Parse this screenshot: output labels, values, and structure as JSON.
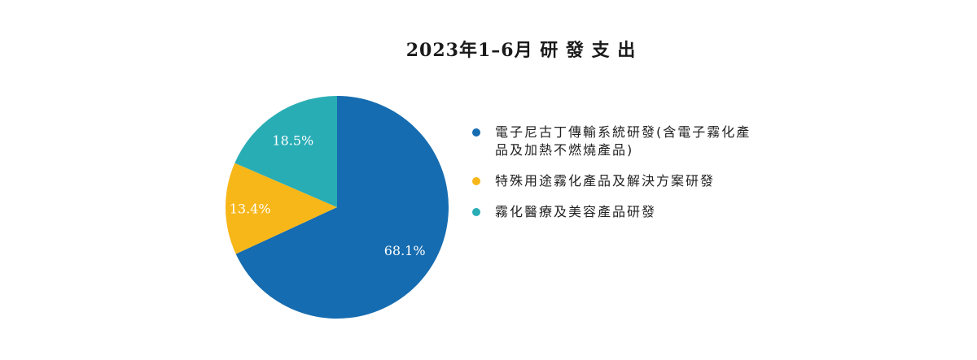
{
  "chart_data": {
    "type": "pie",
    "title": "2023年1–6月 研 發 支 出",
    "categories": [
      "電子尼古丁傳輸系統研發(含電子霧化產品及加熱不燃燒產品)",
      "特殊用途霧化產品及解決方案研發",
      "霧化醫療及美容產品研發"
    ],
    "values": [
      68.1,
      13.4,
      18.5
    ],
    "labels": [
      "68.1%",
      "13.4%",
      "18.5%"
    ],
    "colors": [
      "#166cb0",
      "#f7b719",
      "#29adb5"
    ],
    "legend": "right"
  },
  "legend": {
    "items": [
      {
        "label": "電子尼古丁傳輸系統研發(含電子霧化產品及加熱不燃燒產品)",
        "color": "#166cb0"
      },
      {
        "label": "特殊用途霧化產品及解決方案研發",
        "color": "#f7b719"
      },
      {
        "label": "霧化醫療及美容產品研發",
        "color": "#29adb5"
      }
    ]
  }
}
